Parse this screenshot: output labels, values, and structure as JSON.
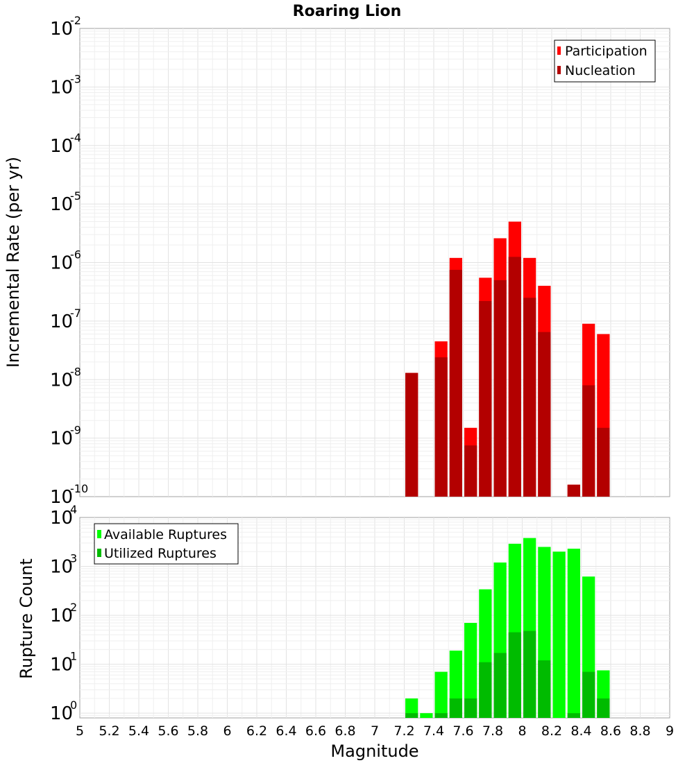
{
  "chart_data": [
    {
      "type": "bar",
      "title": "Roaring Lion",
      "xlabel": "",
      "ylabel": "Incremental Rate (per yr)",
      "y_scale": "log",
      "ylim": [
        1e-10,
        0.01
      ],
      "xlim": [
        5,
        9
      ],
      "bin_width": 0.1,
      "y_tick_exponents": [
        -2,
        -3,
        -4,
        -5,
        -6,
        -7,
        -8,
        -9,
        -10
      ],
      "legend": {
        "placement": "top-right"
      },
      "grid": true,
      "x": [
        7.25,
        7.35,
        7.45,
        7.55,
        7.65,
        7.75,
        7.85,
        7.95,
        8.05,
        8.15,
        8.25,
        8.35,
        8.45,
        8.55
      ],
      "series": [
        {
          "name": "Participation",
          "color": "#ff0000",
          "values": [
            1.3e-08,
            null,
            4.5e-08,
            1.2e-06,
            1.5e-09,
            5.5e-07,
            2.6e-06,
            5e-06,
            1.2e-06,
            4e-07,
            null,
            1.6e-10,
            9e-08,
            6e-08
          ]
        },
        {
          "name": "Nucleation",
          "color": "#b30000",
          "values": [
            1.3e-08,
            null,
            2.4e-08,
            7.5e-07,
            7.5e-10,
            2.2e-07,
            5e-07,
            1.25e-06,
            2.5e-07,
            6.5e-08,
            null,
            1.6e-10,
            8e-09,
            1.5e-09
          ]
        }
      ]
    },
    {
      "type": "bar",
      "title": "",
      "xlabel": "Magnitude",
      "ylabel": "Rupture Count",
      "y_scale": "log",
      "ylim": [
        0.8,
        10000
      ],
      "xlim": [
        5,
        9
      ],
      "bin_width": 0.1,
      "y_tick_exponents": [
        4,
        3,
        2,
        1,
        0
      ],
      "x_ticks": [
        "5",
        "5.2",
        "5.4",
        "5.6",
        "5.8",
        "6",
        "6.2",
        "6.4",
        "6.6",
        "6.8",
        "7",
        "7.2",
        "7.4",
        "7.6",
        "7.8",
        "8",
        "8.2",
        "8.4",
        "8.6",
        "8.8",
        "9"
      ],
      "legend": {
        "placement": "top-left"
      },
      "grid": true,
      "x": [
        7.25,
        7.35,
        7.45,
        7.55,
        7.65,
        7.75,
        7.85,
        7.95,
        8.05,
        8.15,
        8.25,
        8.35,
        8.45,
        8.55
      ],
      "series": [
        {
          "name": "Available Ruptures",
          "color": "#00ff00",
          "values": [
            2,
            1,
            7,
            19,
            70,
            340,
            1200,
            2900,
            3800,
            2500,
            2000,
            2300,
            620,
            7.5
          ]
        },
        {
          "name": "Utilized Ruptures",
          "color": "#00bb00",
          "values": [
            1,
            null,
            1,
            2,
            2,
            11,
            17,
            45,
            48,
            12,
            null,
            1,
            7,
            2
          ]
        }
      ]
    }
  ]
}
